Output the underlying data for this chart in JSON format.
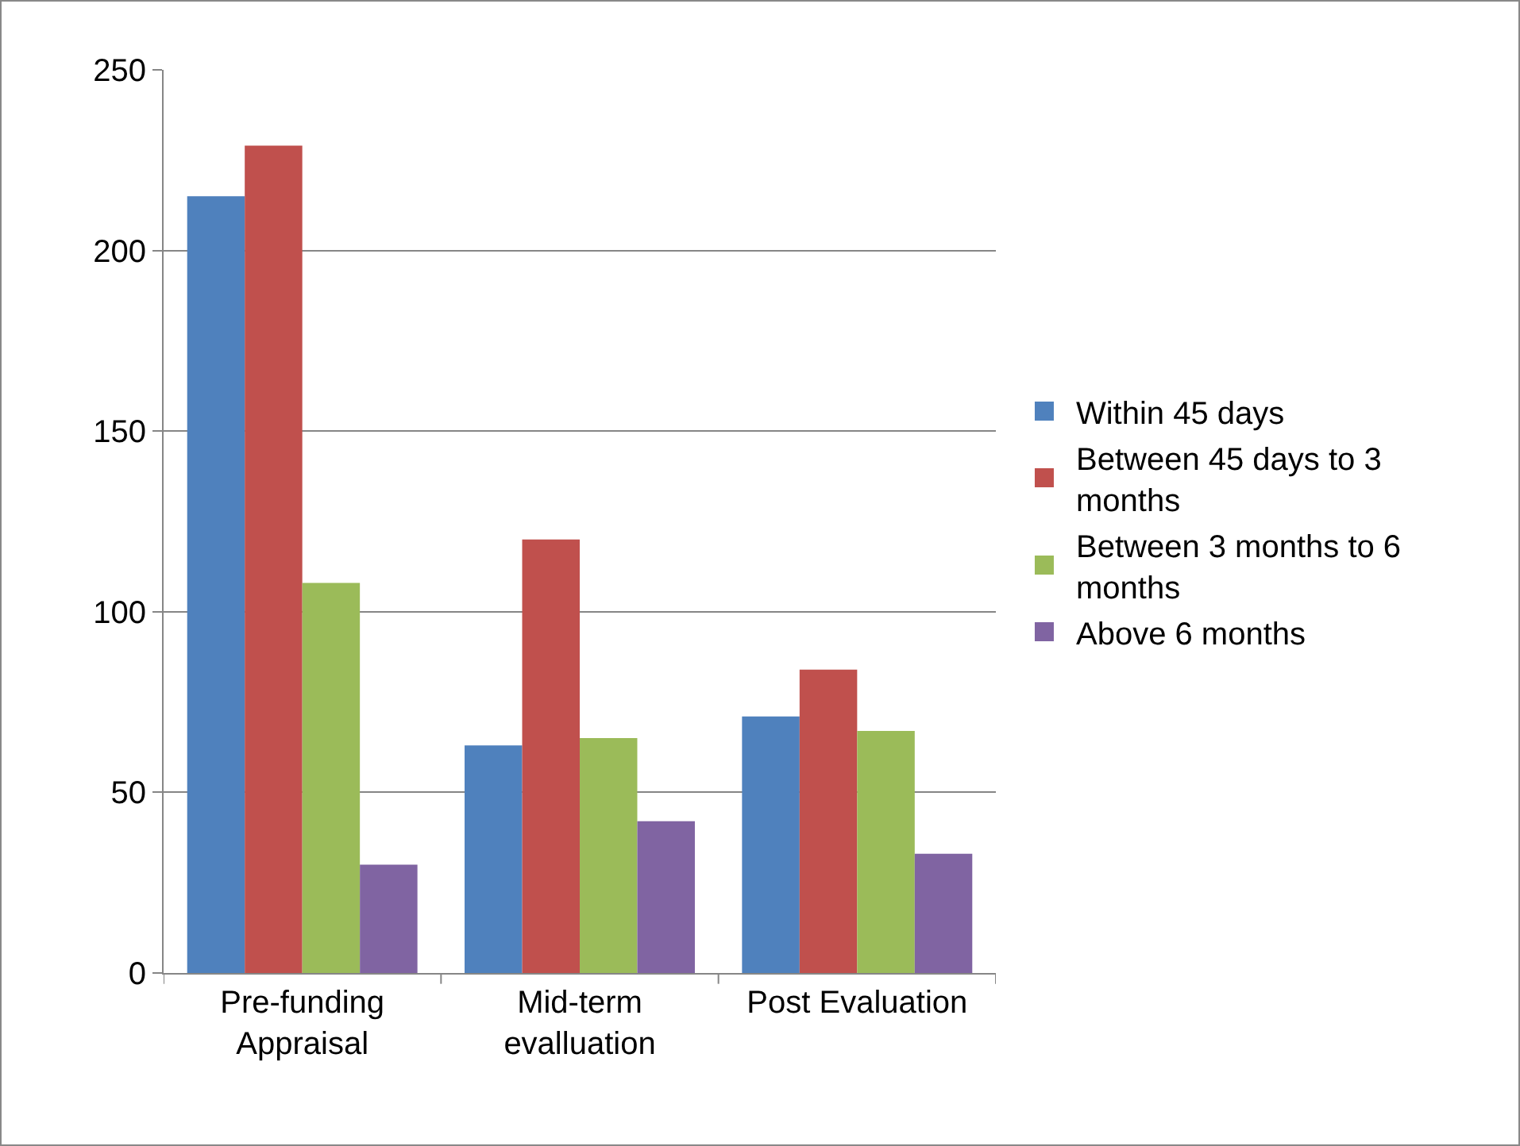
{
  "chart_data": {
    "type": "bar",
    "categories": [
      "Pre-funding Appraisal",
      "Mid-term evalluation",
      "Post Evaluation"
    ],
    "series": [
      {
        "name": "Within 45 days",
        "color": "#4f81bd",
        "values": [
          215,
          63,
          71
        ]
      },
      {
        "name": "Between 45 days to 3 months",
        "color": "#c0504d",
        "values": [
          229,
          120,
          84
        ]
      },
      {
        "name": "Between 3 months to 6 months",
        "color": "#9bbb59",
        "values": [
          108,
          65,
          67
        ]
      },
      {
        "name": "Above 6 months",
        "color": "#8064a2",
        "values": [
          30,
          42,
          33
        ]
      }
    ],
    "ylim": [
      0,
      250
    ],
    "yticks": [
      0,
      50,
      100,
      150,
      200,
      250
    ],
    "grid": "y",
    "legend": "right"
  }
}
